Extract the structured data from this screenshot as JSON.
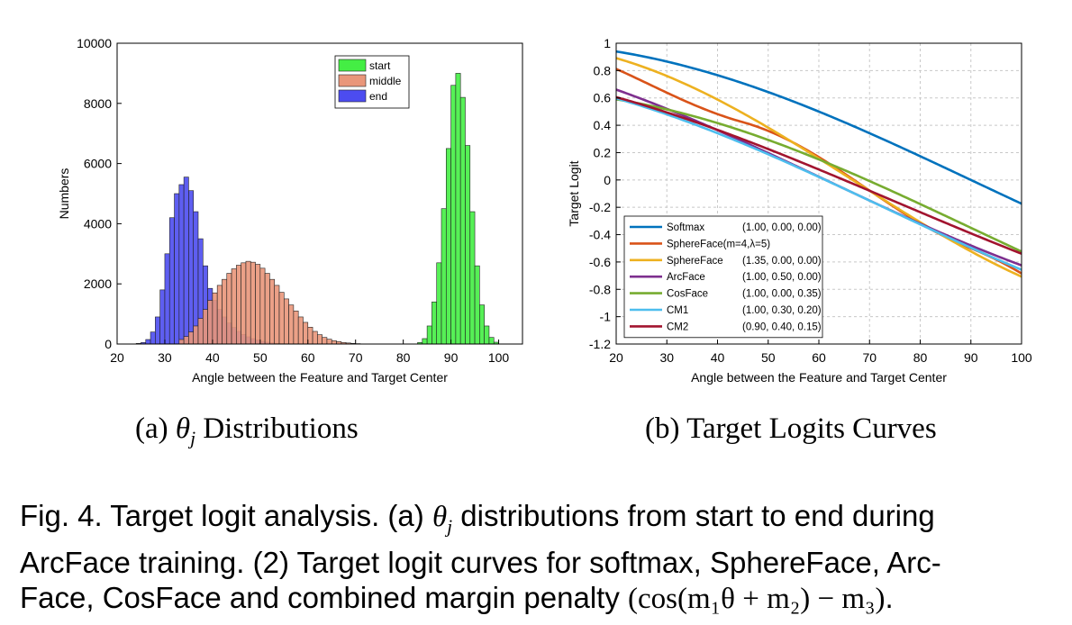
{
  "charts": {
    "a": {
      "sublabel_prefix": "(a)",
      "sublabel_text": "Distributions"
    },
    "b": {
      "sublabel_prefix": "(b)",
      "sublabel_text": "Target Logits Curves"
    }
  },
  "caption": {
    "line1_a": "Fig. 4. Target logit analysis. (a)",
    "line1_b": "distributions from start to end during",
    "line2": "ArcFace training. (2) Target logit curves for softmax, SphereFace, Arc-",
    "line3_a": "Face, CosFace and combined margin penalty",
    "line3_end": "."
  },
  "math": {
    "theta": "θ",
    "sub_j": "j",
    "formula": "(cos(m₁θ + m₂) − m₃)"
  },
  "chart_data": [
    {
      "type": "histogram",
      "xlabel": "Angle between the Feature and Target Center",
      "ylabel": "Numbers",
      "xlim": [
        20,
        105
      ],
      "ylim": [
        0,
        10000
      ],
      "xticks": [
        20,
        30,
        40,
        50,
        60,
        70,
        80,
        90,
        100
      ],
      "yticks": [
        0,
        2000,
        4000,
        6000,
        8000,
        10000
      ],
      "bin_width": 1,
      "legend_position": "top-right",
      "series": [
        {
          "name": "end",
          "color": "#4c4cf0",
          "x_start": 24,
          "values": [
            20,
            50,
            150,
            400,
            900,
            1800,
            3000,
            4200,
            5000,
            5300,
            5550,
            5100,
            4400,
            3500,
            2600,
            1850,
            1450,
            1150,
            900,
            700,
            550,
            420,
            320,
            240,
            180,
            130,
            90,
            60,
            40,
            25,
            15,
            8,
            4
          ]
        },
        {
          "name": "middle",
          "color": "#e9967a",
          "x_start": 33,
          "values": [
            150,
            250,
            400,
            600,
            850,
            1150,
            1450,
            1700,
            1950,
            2150,
            2350,
            2500,
            2620,
            2700,
            2750,
            2720,
            2650,
            2520,
            2350,
            2150,
            1950,
            1720,
            1500,
            1300,
            1100,
            900,
            720,
            560,
            420,
            310,
            220,
            160,
            110,
            80,
            50,
            35,
            20,
            12
          ]
        },
        {
          "name": "start",
          "color": "#44ee44",
          "x_start": 83,
          "values": [
            50,
            180,
            600,
            1400,
            2700,
            4500,
            6500,
            8600,
            9000,
            8200,
            6600,
            4400,
            2600,
            1300,
            600,
            220,
            60
          ]
        }
      ]
    },
    {
      "type": "line",
      "xlabel": "Angle between the Feature and Target Center",
      "ylabel": "Target Logit",
      "xlim": [
        20,
        100
      ],
      "ylim": [
        -1.2,
        1
      ],
      "xticks": [
        20,
        30,
        40,
        50,
        60,
        70,
        80,
        90,
        100
      ],
      "yticks": [
        -1.2,
        -1,
        -0.8,
        -0.6,
        -0.4,
        -0.2,
        0,
        0.2,
        0.4,
        0.6,
        0.8,
        1
      ],
      "grid": true,
      "legend_position": "bottom-left",
      "series": [
        {
          "name": "Softmax",
          "params": "(1.00, 0.00, 0.00)",
          "color": "#0072bd",
          "m1": 1.0,
          "m2": 0.0,
          "m3": 0.0
        },
        {
          "name": "SphereFace(m=4,λ=5)",
          "params": "",
          "color": "#d95319",
          "sphereface": true,
          "m": 4,
          "lambda": 5
        },
        {
          "name": "SphereFace",
          "params": "(1.35, 0.00, 0.00)",
          "color": "#edb120",
          "m1": 1.35,
          "m2": 0.0,
          "m3": 0.0
        },
        {
          "name": "ArcFace",
          "params": "(1.00, 0.50, 0.00)",
          "color": "#7e2f8e",
          "m1": 1.0,
          "m2": 0.5,
          "m3": 0.0
        },
        {
          "name": "CosFace",
          "params": "(1.00, 0.00, 0.35)",
          "color": "#77ac30",
          "m1": 1.0,
          "m2": 0.0,
          "m3": 0.35
        },
        {
          "name": "CM1",
          "params": "(1.00, 0.30, 0.20)",
          "color": "#4dbeee",
          "m1": 1.0,
          "m2": 0.3,
          "m3": 0.2
        },
        {
          "name": "CM2",
          "params": "(0.90, 0.40, 0.15)",
          "color": "#a2142f",
          "m1": 0.9,
          "m2": 0.4,
          "m3": 0.15
        }
      ]
    }
  ]
}
